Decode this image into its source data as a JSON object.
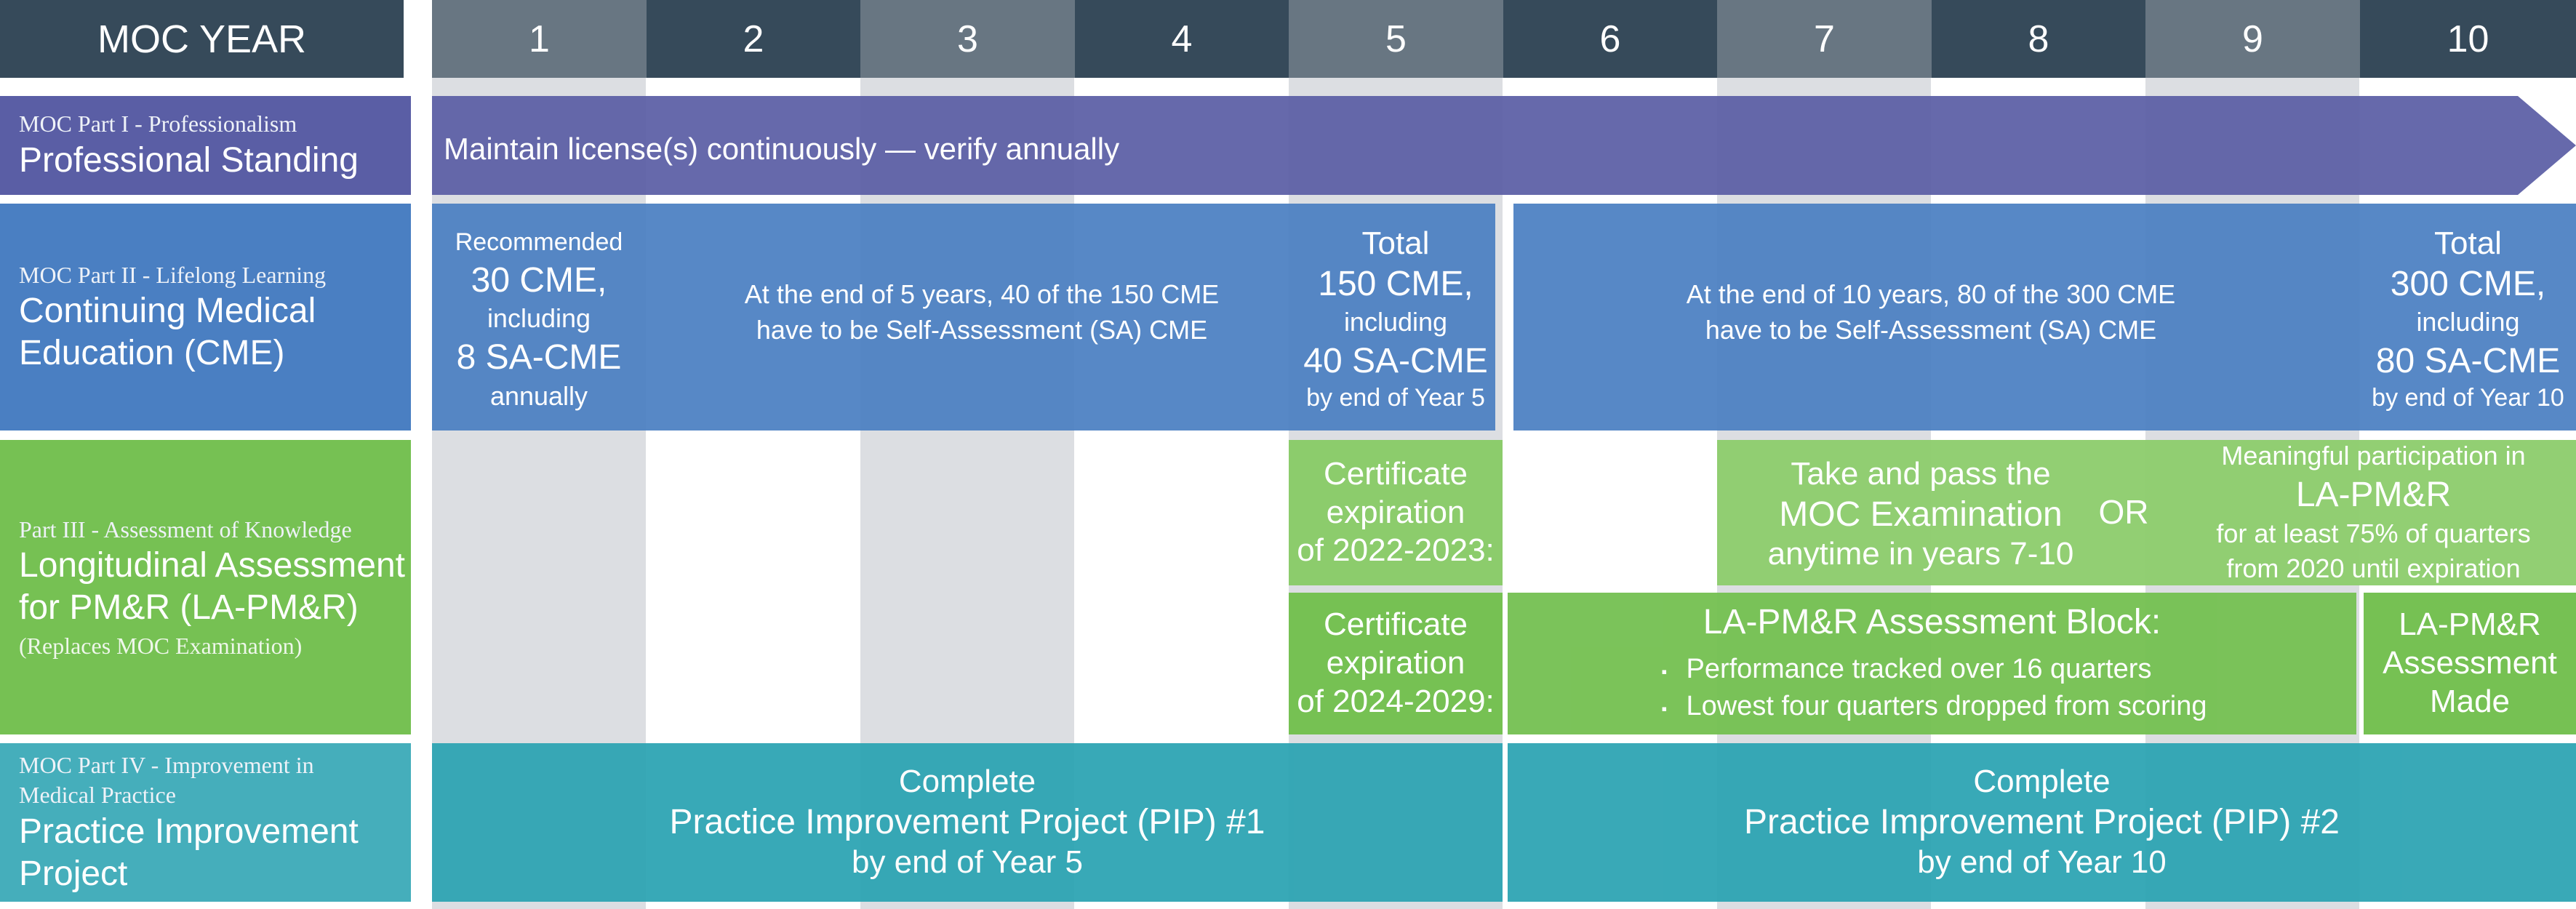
{
  "header": {
    "title": "MOC YEAR",
    "years": [
      "1",
      "2",
      "3",
      "4",
      "5",
      "6",
      "7",
      "8",
      "9",
      "10"
    ]
  },
  "rows": {
    "part1": {
      "sub": "MOC Part I - Professionalism",
      "main": "Professional Standing"
    },
    "part2": {
      "sub": "MOC Part II - Lifelong Learning",
      "main_l1": "Continuing Medical",
      "main_l2": "Education (CME)"
    },
    "part3": {
      "sub": "Part III - Assessment of Knowledge",
      "main_l1": "Longitudinal Assessment",
      "main_l2": "for PM&R (LA-PM&R)",
      "note": "(Replaces MOC Examination)"
    },
    "part4": {
      "sub_l1": "MOC Part IV - Improvement in",
      "sub_l2": "Medical Practice",
      "main_l1": "Practice Improvement",
      "main_l2": "Project"
    }
  },
  "professional_standing": {
    "arrow_text": "Maintain license(s) continuously — verify annually"
  },
  "cme": {
    "annual": {
      "l1": "Recommended",
      "l2": "30 CME,",
      "l3": "including",
      "l4": "8 SA-CME",
      "l5": "annually"
    },
    "five_year_note": {
      "l1": "At the end of 5 years, 40 of the 150 CME",
      "l2": "have to be Self-Assessment (SA) CME"
    },
    "year5_total": {
      "l1": "Total",
      "l2": "150 CME,",
      "l3": "including",
      "l4": "40 SA-CME",
      "l5": "by end of Year 5"
    },
    "ten_year_note": {
      "l1": "At the end of 10 years, 80 of the 300 CME",
      "l2": "have to be Self-Assessment (SA) CME"
    },
    "year10_total": {
      "l1": "Total",
      "l2": "300 CME,",
      "l3": "including",
      "l4": "80 SA-CME",
      "l5": "by end of Year 10"
    }
  },
  "assessment": {
    "cert_2022": {
      "l1": "Certificate",
      "l2": "expiration",
      "l3": "of 2022-2023:"
    },
    "cert_2024": {
      "l1": "Certificate",
      "l2": "expiration",
      "l3": "of 2024-2029:"
    },
    "exam": {
      "l1": "Take and pass the",
      "l2": "MOC Examination",
      "l3": "anytime in years 7-10"
    },
    "or": "OR",
    "participation": {
      "l1": "Meaningful participation in",
      "l2": "LA-PM&R",
      "l3": "for at least 75% of quarters",
      "l4": "from 2020 until expiration"
    },
    "block": {
      "title": "LA-PM&R Assessment Block:",
      "bullets": [
        "Performance tracked over 16 quarters",
        "Lowest four quarters dropped from scoring"
      ]
    },
    "made": {
      "l1": "LA-PM&R",
      "l2": "Assessment",
      "l3": "Made"
    }
  },
  "pip": {
    "pip1": {
      "l1": "Complete",
      "l2": "Practice Improvement Project (PIP) #1",
      "l3": "by end of Year 5"
    },
    "pip2": {
      "l1": "Complete",
      "l2": "Practice Improvement Project (PIP) #2",
      "l3": "by end of Year 10"
    }
  },
  "colors": {
    "header": "#364a5a",
    "stripe": "#dcdee2",
    "professional_standing": "#5a5ea5",
    "cme": "#4a7fc2",
    "assessment": "#76c153",
    "assessment_light": "#8ccc6c",
    "pip": "#2aa3b2",
    "pip_label": "#45aebb"
  }
}
